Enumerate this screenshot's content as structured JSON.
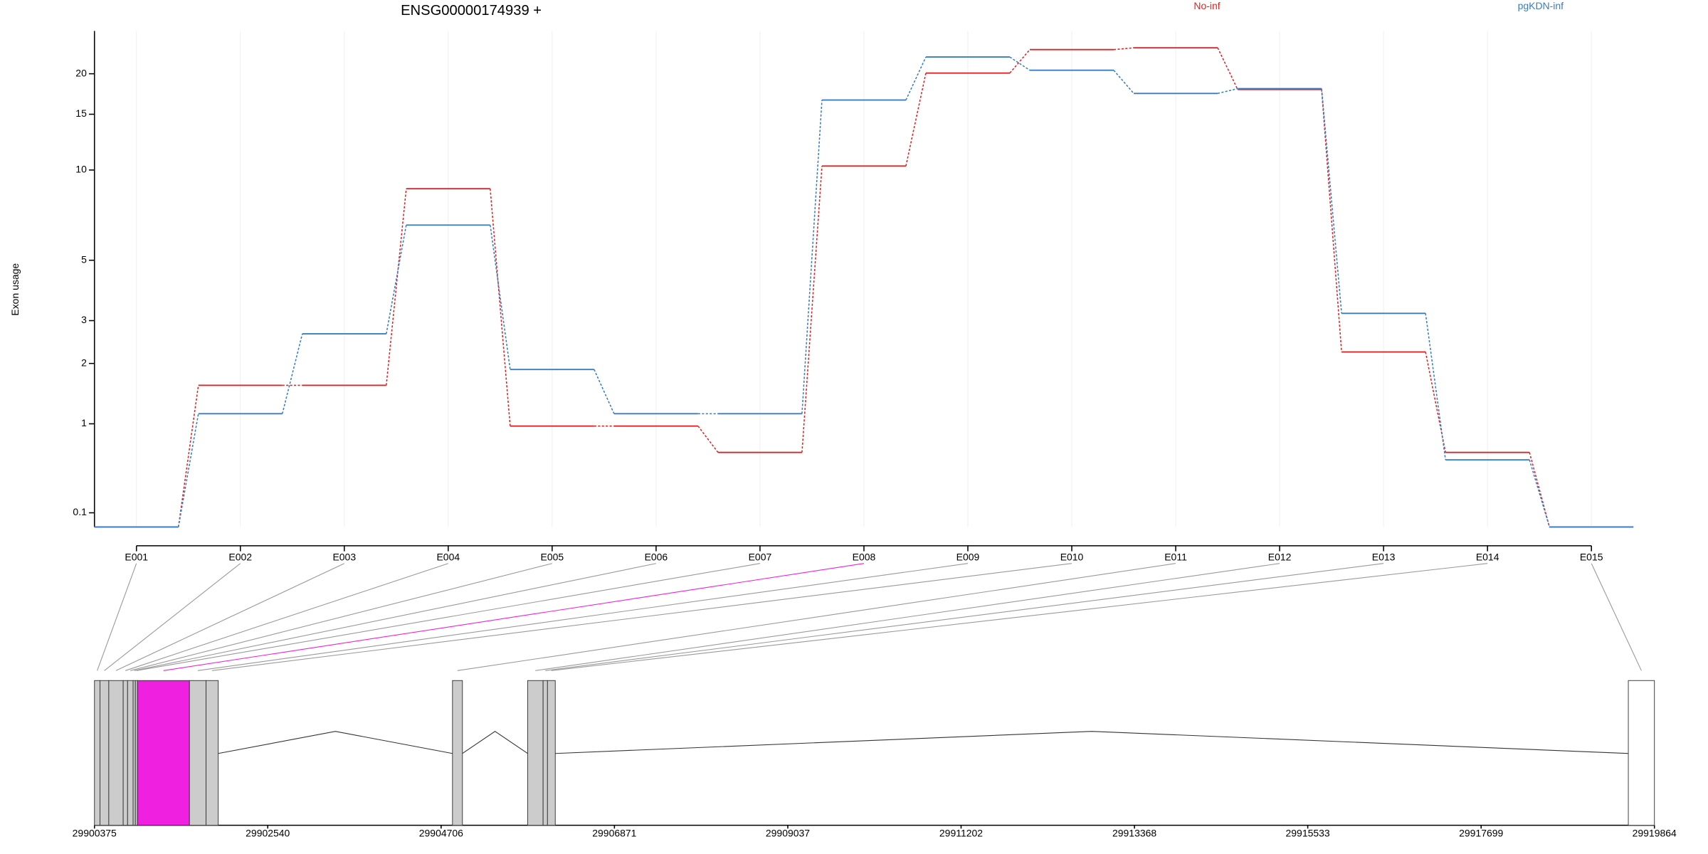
{
  "chart_data": {
    "type": "line",
    "title": "ENSG00000174939 +",
    "y_label": "Exon usage",
    "yscale": "log1p",
    "grid": true,
    "legend": "top",
    "categories": [
      "E001",
      "E002",
      "E003",
      "E004",
      "E005",
      "E006",
      "E007",
      "E008",
      "E009",
      "E010",
      "E011",
      "E012",
      "E013",
      "E014",
      "E015"
    ],
    "series": [
      {
        "name": "No-inf",
        "color": "#d62728",
        "values": [
          0,
          1.59,
          1.59,
          8.7,
          0.97,
          0.97,
          0.65,
          10.3,
          20.1,
          23.7,
          24,
          17.9,
          2.24,
          0.65,
          0
        ]
      },
      {
        "name": "pgKDN-inf",
        "color": "#3a7dbf",
        "values": [
          0,
          1.14,
          2.66,
          6.6,
          1.88,
          1.14,
          1.14,
          16.6,
          22.5,
          20.5,
          17.4,
          18,
          3.2,
          0.57,
          0
        ]
      }
    ],
    "ylim": [
      0,
      27
    ],
    "yticks": [
      0.1,
      1,
      2,
      3,
      5,
      10,
      15,
      20
    ]
  },
  "gene_model": {
    "xlim": [
      29900375,
      29919864
    ],
    "xticks": [
      29900375,
      29902540,
      29904706,
      29906871,
      29909037,
      29911202,
      29913368,
      29915533,
      29917699,
      29919864
    ],
    "exons": [
      [
        29900375,
        29900444
      ],
      [
        29900444,
        29900554
      ],
      [
        29900554,
        29900734
      ],
      [
        29900734,
        29900789
      ],
      [
        29900789,
        29900858
      ],
      [
        29900858,
        29900886
      ],
      [
        29900886,
        29900913
      ],
      [
        29900913,
        29901562
      ],
      [
        29901562,
        29901769
      ],
      [
        29901769,
        29901921
      ],
      [
        29904848,
        29904972
      ],
      [
        29905787,
        29905980
      ],
      [
        29905980,
        29906035
      ],
      [
        29906035,
        29906132
      ],
      [
        29919538,
        29919864
      ]
    ],
    "exon_colors": [
      "#cccccc",
      "#cccccc",
      "#cccccc",
      "#cccccc",
      "#cccccc",
      "#cccccc",
      "#cccccc",
      "#f020e0",
      "#cccccc",
      "#cccccc",
      "#cccccc",
      "#cccccc",
      "#cccccc",
      "#cccccc",
      "#ffffff"
    ]
  }
}
